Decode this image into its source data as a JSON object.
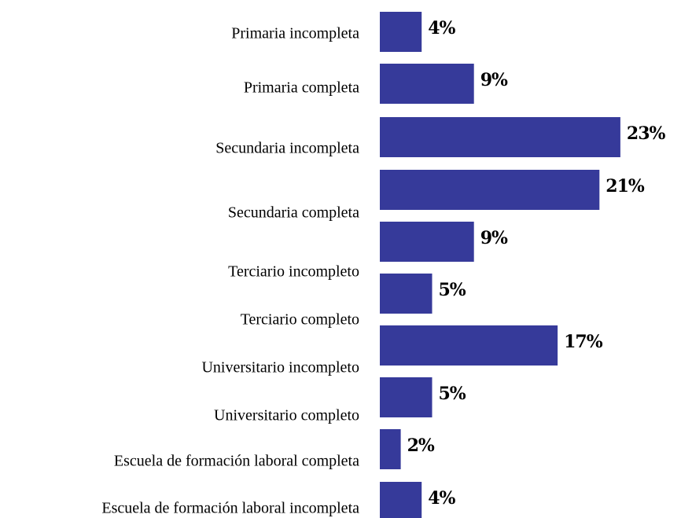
{
  "chart_data": {
    "type": "bar",
    "orientation": "horizontal",
    "categories": [
      "Primaria incompleta",
      "Primaria completa",
      "Secundaria incompleta",
      "Secundaria completa",
      "Terciario incompleto",
      "Terciario completo",
      "Universitario incompleto",
      "Universitario completo",
      "Escuela de formación  laboral completa",
      "Escuela de formación laboral incompleta"
    ],
    "values": [
      4,
      9,
      23,
      21,
      9,
      5,
      17,
      5,
      2,
      4
    ],
    "value_labels": [
      "4%",
      "9%",
      "23%",
      "21%",
      "9%",
      "5%",
      "17%",
      "5%",
      "2%",
      "4%"
    ],
    "color": "#363a9a"
  }
}
